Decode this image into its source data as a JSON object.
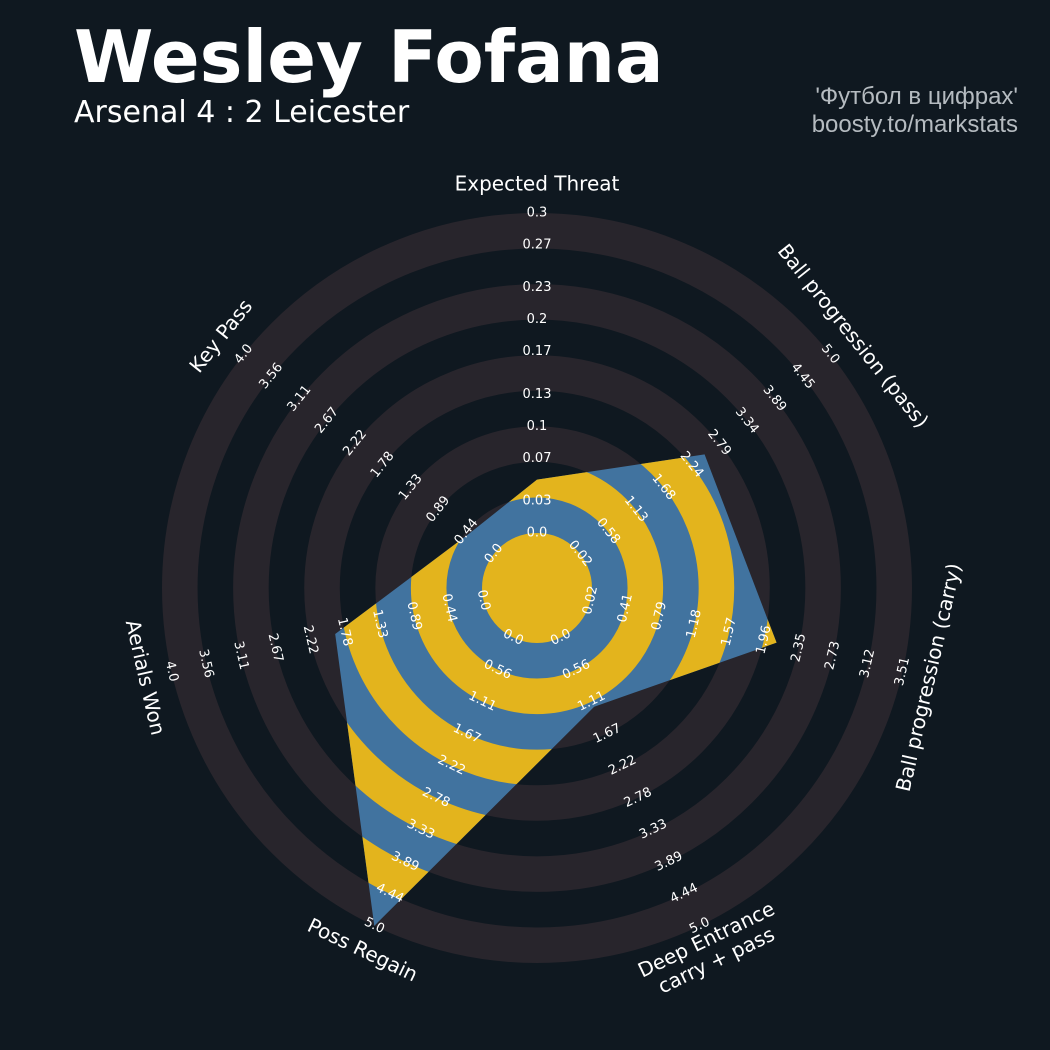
{
  "chart_data": {
    "type": "radar",
    "title": "Wesley Fofana",
    "subtitle": "Arsenal 4 : 2 Leicester",
    "credits": [
      "'Футбол в цифрах'",
      "boosty.to/markstats"
    ],
    "colors": {
      "background": "#0f1820",
      "ring": "#28252c",
      "radar": "#41739f",
      "radar_alt": "#e3b41d",
      "text": "#ffffff",
      "credit": "#b5bbc0"
    },
    "params": [
      {
        "name": [
          "Expected Threat"
        ],
        "lim": [
          0,
          0.3
        ],
        "ticks": [
          {
            "value": 0,
            "label": "0.0"
          },
          0.03,
          0.07,
          0.1,
          0.13,
          0.17,
          0.2,
          0.23,
          0.27,
          0.3
        ]
      },
      {
        "name": [
          "Ball progression (pass)"
        ],
        "lim": [
          0.02,
          5
        ],
        "ticks": [
          0.02,
          0.58,
          1.13,
          1.68,
          2.24,
          2.79,
          3.34,
          3.89,
          4.45,
          {
            "value": 5,
            "label": "5.0"
          }
        ]
      },
      {
        "name": [
          "Ball progression (carry)"
        ],
        "lim": [
          0.02,
          3.51
        ],
        "ticks": [
          0.02,
          0.41,
          0.79,
          1.18,
          1.57,
          1.96,
          2.35,
          2.73,
          3.12,
          3.51
        ]
      },
      {
        "name": [
          "Deep Entrance",
          "carry + pass"
        ],
        "lim": [
          0,
          5
        ],
        "ticks": [
          {
            "value": 0,
            "label": "0.0"
          },
          0.56,
          1.11,
          1.67,
          2.22,
          2.78,
          3.33,
          3.89,
          4.44,
          {
            "value": 5,
            "label": "5.0"
          }
        ]
      },
      {
        "name": [
          "Poss Regain"
        ],
        "lim": [
          0,
          5
        ],
        "ticks": [
          {
            "value": 0,
            "label": "0.0"
          },
          0.56,
          1.11,
          1.67,
          2.22,
          2.78,
          3.33,
          3.89,
          4.44,
          {
            "value": 5,
            "label": "5.0"
          }
        ]
      },
      {
        "name": [
          "Aerials Won"
        ],
        "lim": [
          0,
          4
        ],
        "ticks": [
          {
            "value": 0,
            "label": "0.0"
          },
          0.44,
          0.89,
          1.33,
          1.78,
          2.22,
          2.67,
          3.11,
          3.56,
          {
            "value": 4,
            "label": "4.0"
          }
        ]
      },
      {
        "name": [
          "Key Pass"
        ],
        "lim": [
          0,
          4
        ],
        "ticks": [
          {
            "value": 0,
            "label": "0.0"
          },
          0.44,
          0.89,
          1.33,
          1.78,
          2.22,
          2.67,
          3.11,
          3.56,
          {
            "value": 4,
            "label": "4.0"
          }
        ]
      }
    ],
    "values": [
      0.05,
      2.5,
      2.1,
      1.2,
      5.0,
      1.9,
      0.4
    ]
  }
}
